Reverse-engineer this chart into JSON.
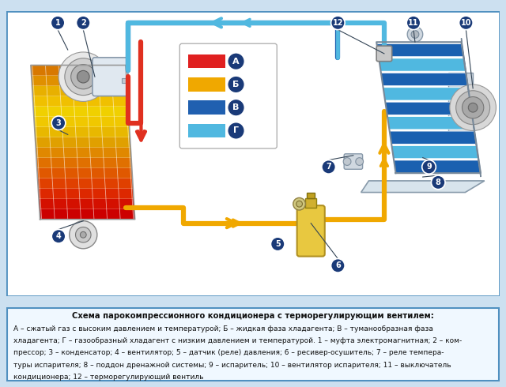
{
  "title": "Схема парокомпрессионного кондиционера с терморегулирующим вентилем:",
  "description_lines": [
    "А – сжатый газ с высоким давлением и температурой; Б – жидкая фаза хладагента; В – туманообразная фаза",
    "хладагента; Г – газообразный хладагент с низким давлением и температурой. 1 – муфта электромагнитная; 2 – ком-",
    "прессор; 3 – конденсатор; 4 – вентилятор; 5 – датчик (реле) давления; 6 – ресивер-осушитель; 7 – реле темпера-",
    "туры испарителя; 8 – поддон дренажной системы; 9 – испаритель; 10 – вентилятор испарителя; 11 – выключатель",
    "кондиционера; 12 – терморегулирующий вентиль"
  ],
  "legend_items": [
    {
      "label": "А",
      "color": "#e02020"
    },
    {
      "label": "Б",
      "color": "#f0a800"
    },
    {
      "label": "В",
      "color": "#2060b0"
    },
    {
      "label": "Г",
      "color": "#50b8e0"
    }
  ],
  "bg_color": "#cce0f0",
  "diagram_bg": "#ffffff",
  "border_color": "#5090c0",
  "text_area_bg": "#ffffff",
  "font_size_title": 7.2,
  "font_size_desc": 6.5,
  "condenser_colors": [
    "#cc0000",
    "#d41000",
    "#dd2800",
    "#e04000",
    "#e05800",
    "#e07000",
    "#e08800",
    "#e0a000",
    "#e8b800",
    "#f0c800",
    "#f0d000",
    "#f0c000",
    "#e8b000",
    "#e09000",
    "#d87800"
  ],
  "num_circle_color": "#1a3a78",
  "pipe_red": "#e03020",
  "pipe_yellow": "#f0a800",
  "pipe_dark_blue": "#1a60b0",
  "pipe_light_blue": "#50b8e0",
  "pipe_lw_main": 4.5,
  "pipe_lw_thin": 3.0
}
